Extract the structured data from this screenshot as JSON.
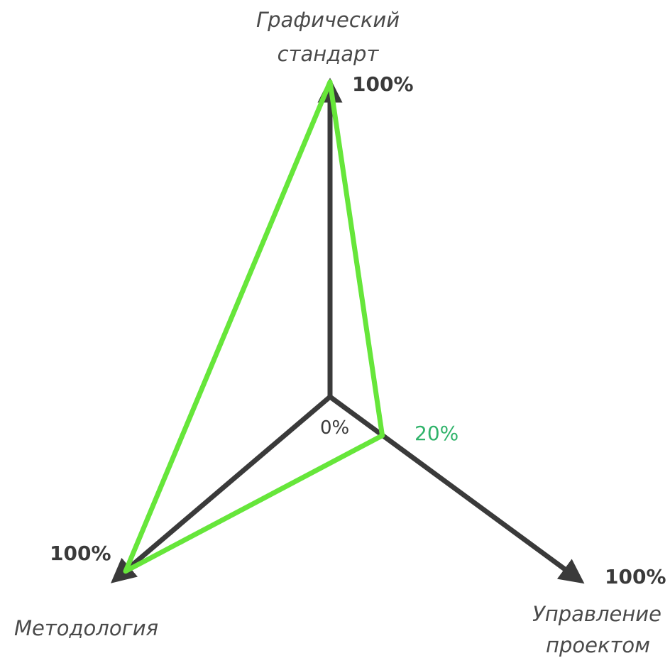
{
  "chart_data": {
    "type": "radar",
    "axes": [
      {
        "name_lines": [
          "Графический",
          "стандарт"
        ],
        "max_label": "100%"
      },
      {
        "name_lines": [
          "Управление",
          "проектом"
        ],
        "max_label": "100%"
      },
      {
        "name_lines": [
          "Методология"
        ],
        "max_label": "100%"
      }
    ],
    "origin_label": "0%",
    "range": [
      0,
      100
    ],
    "series": [
      {
        "values": [
          100,
          20,
          100
        ],
        "value_label": "20%",
        "color": "#66e63a"
      }
    ],
    "axis_color": "#3a3a3a",
    "value_label_color": "#2fb36a"
  }
}
